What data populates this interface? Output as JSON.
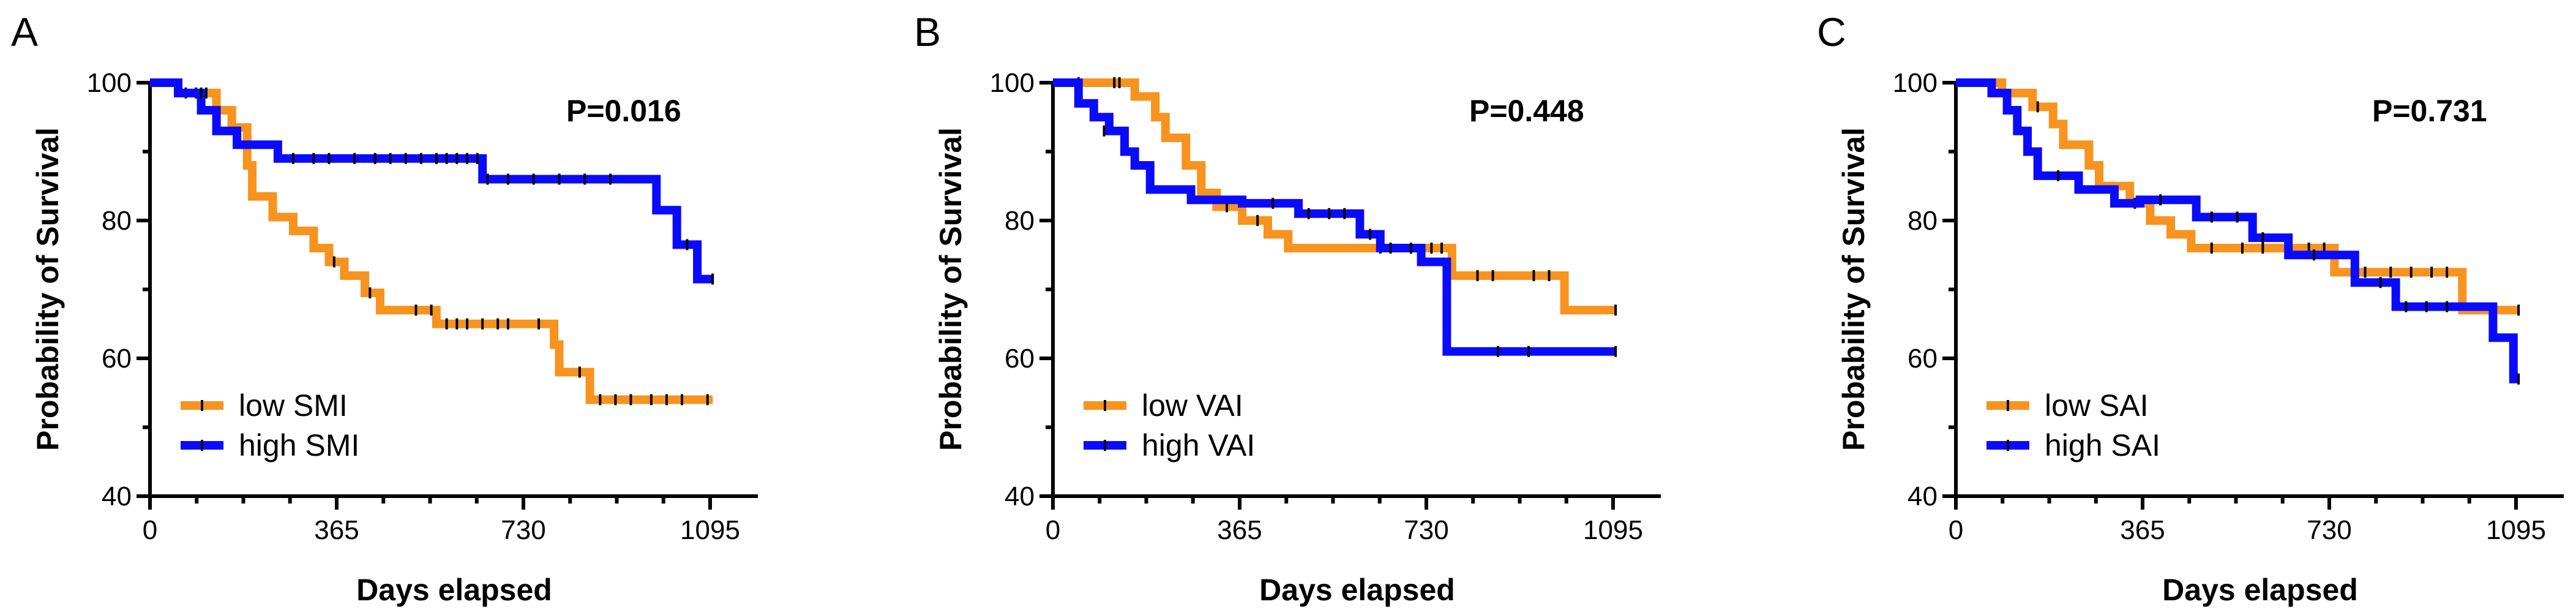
{
  "chart_data": [
    {
      "type": "line",
      "panel_label": "A",
      "xlabel": "Days elapsed",
      "ylabel": "Probability of Survival",
      "xlim": [
        0,
        1150
      ],
      "ylim": [
        40,
        100
      ],
      "xticks": [
        0,
        365,
        730,
        1095
      ],
      "yticks": [
        40,
        60,
        80,
        100
      ],
      "p_value": "P=0.016",
      "legend_position": "bottom-left",
      "series": [
        {
          "name": "low SMI",
          "color": "#f7931e",
          "steps": [
            [
              0,
              100
            ],
            [
              55,
              100
            ],
            [
              55,
              98.5
            ],
            [
              130,
              98.5
            ],
            [
              130,
              96
            ],
            [
              160,
              96
            ],
            [
              160,
              93.5
            ],
            [
              190,
              93.5
            ],
            [
              190,
              88
            ],
            [
              200,
              88
            ],
            [
              200,
              83.5
            ],
            [
              240,
              83.5
            ],
            [
              240,
              80.5
            ],
            [
              280,
              80.5
            ],
            [
              280,
              78.5
            ],
            [
              320,
              78.5
            ],
            [
              320,
              76
            ],
            [
              350,
              76
            ],
            [
              350,
              74
            ],
            [
              380,
              74
            ],
            [
              380,
              72
            ],
            [
              420,
              72
            ],
            [
              420,
              69.5
            ],
            [
              450,
              69.5
            ],
            [
              450,
              67
            ],
            [
              560,
              67
            ],
            [
              560,
              65
            ],
            [
              790,
              65
            ],
            [
              790,
              62
            ],
            [
              800,
              62
            ],
            [
              800,
              58
            ],
            [
              860,
              58
            ],
            [
              860,
              54
            ],
            [
              1100,
              54
            ]
          ],
          "censored": [
            [
              70,
              98.5
            ],
            [
              90,
              98.5
            ],
            [
              110,
              98.5
            ],
            [
              360,
              74
            ],
            [
              430,
              69.5
            ],
            [
              520,
              67
            ],
            [
              550,
              67
            ],
            [
              580,
              65
            ],
            [
              600,
              65
            ],
            [
              620,
              65
            ],
            [
              650,
              65
            ],
            [
              680,
              65
            ],
            [
              700,
              65
            ],
            [
              760,
              65
            ],
            [
              840,
              58
            ],
            [
              880,
              54
            ],
            [
              910,
              54
            ],
            [
              940,
              54
            ],
            [
              980,
              54
            ],
            [
              1010,
              54
            ],
            [
              1040,
              54
            ],
            [
              1090,
              54
            ]
          ]
        },
        {
          "name": "high SMI",
          "color": "#0a0aff",
          "steps": [
            [
              0,
              100
            ],
            [
              55,
              100
            ],
            [
              55,
              98.5
            ],
            [
              100,
              98.5
            ],
            [
              100,
              96
            ],
            [
              130,
              96
            ],
            [
              130,
              93
            ],
            [
              170,
              93
            ],
            [
              170,
              91
            ],
            [
              250,
              91
            ],
            [
              250,
              89
            ],
            [
              650,
              89
            ],
            [
              650,
              86
            ],
            [
              990,
              86
            ],
            [
              990,
              81.5
            ],
            [
              1030,
              81.5
            ],
            [
              1030,
              76.5
            ],
            [
              1070,
              76.5
            ],
            [
              1070,
              71.5
            ],
            [
              1100,
              71.5
            ]
          ],
          "censored": [
            [
              100,
              98.5
            ],
            [
              280,
              89
            ],
            [
              320,
              89
            ],
            [
              350,
              89
            ],
            [
              400,
              89
            ],
            [
              440,
              89
            ],
            [
              470,
              89
            ],
            [
              500,
              89
            ],
            [
              530,
              89
            ],
            [
              560,
              89
            ],
            [
              580,
              89
            ],
            [
              600,
              89
            ],
            [
              620,
              89
            ],
            [
              640,
              89
            ],
            [
              660,
              86
            ],
            [
              700,
              86
            ],
            [
              750,
              86
            ],
            [
              800,
              86
            ],
            [
              850,
              86
            ],
            [
              900,
              86
            ],
            [
              1050,
              76.5
            ],
            [
              1100,
              71.5
            ]
          ]
        }
      ]
    },
    {
      "type": "line",
      "panel_label": "B",
      "xlabel": "Days elapsed",
      "ylabel": "Probability of Survival",
      "xlim": [
        0,
        1150
      ],
      "ylim": [
        40,
        100
      ],
      "xticks": [
        0,
        365,
        730,
        1095
      ],
      "yticks": [
        40,
        60,
        80,
        100
      ],
      "p_value": "P=0.448",
      "legend_position": "bottom-left",
      "series": [
        {
          "name": "low VAI",
          "color": "#f7931e",
          "steps": [
            [
              0,
              100
            ],
            [
              160,
              100
            ],
            [
              160,
              98
            ],
            [
              200,
              98
            ],
            [
              200,
              95
            ],
            [
              220,
              95
            ],
            [
              220,
              92
            ],
            [
              260,
              92
            ],
            [
              260,
              88
            ],
            [
              290,
              88
            ],
            [
              290,
              84
            ],
            [
              320,
              84
            ],
            [
              320,
              82
            ],
            [
              370,
              82
            ],
            [
              370,
              80
            ],
            [
              420,
              80
            ],
            [
              420,
              78
            ],
            [
              460,
              78
            ],
            [
              460,
              76
            ],
            [
              780,
              76
            ],
            [
              780,
              72
            ],
            [
              1000,
              72
            ],
            [
              1000,
              67
            ],
            [
              1100,
              67
            ]
          ],
          "censored": [
            [
              50,
              100
            ],
            [
              120,
              100
            ],
            [
              130,
              100
            ],
            [
              340,
              82
            ],
            [
              400,
              80
            ],
            [
              640,
              76
            ],
            [
              700,
              76
            ],
            [
              740,
              76
            ],
            [
              760,
              76
            ],
            [
              830,
              72
            ],
            [
              860,
              72
            ],
            [
              940,
              72
            ],
            [
              970,
              72
            ],
            [
              1100,
              67
            ]
          ]
        },
        {
          "name": "high VAI",
          "color": "#0a0aff",
          "steps": [
            [
              0,
              100
            ],
            [
              50,
              100
            ],
            [
              50,
              97
            ],
            [
              80,
              97
            ],
            [
              80,
              95
            ],
            [
              110,
              95
            ],
            [
              110,
              93
            ],
            [
              140,
              93
            ],
            [
              140,
              90
            ],
            [
              160,
              90
            ],
            [
              160,
              88
            ],
            [
              190,
              88
            ],
            [
              190,
              84.5
            ],
            [
              270,
              84.5
            ],
            [
              270,
              83
            ],
            [
              370,
              83
            ],
            [
              370,
              82.5
            ],
            [
              480,
              82.5
            ],
            [
              480,
              81
            ],
            [
              600,
              81
            ],
            [
              600,
              78
            ],
            [
              640,
              78
            ],
            [
              640,
              76
            ],
            [
              720,
              76
            ],
            [
              720,
              74
            ],
            [
              770,
              74
            ],
            [
              770,
              61
            ],
            [
              1100,
              61
            ]
          ],
          "censored": [
            [
              100,
              93
            ],
            [
              430,
              82.5
            ],
            [
              500,
              81
            ],
            [
              540,
              81
            ],
            [
              570,
              81
            ],
            [
              620,
              78
            ],
            [
              660,
              76
            ],
            [
              700,
              76
            ],
            [
              870,
              61
            ],
            [
              930,
              61
            ],
            [
              1100,
              61
            ]
          ]
        }
      ]
    },
    {
      "type": "line",
      "panel_label": "C",
      "xlabel": "Days elapsed",
      "ylabel": "Probability of Survival",
      "xlim": [
        0,
        1150
      ],
      "ylim": [
        40,
        100
      ],
      "xticks": [
        0,
        365,
        730,
        1095
      ],
      "yticks": [
        40,
        60,
        80,
        100
      ],
      "p_value": "P=0.731",
      "legend_position": "bottom-left",
      "series": [
        {
          "name": "low SAI",
          "color": "#f7931e",
          "steps": [
            [
              0,
              100
            ],
            [
              90,
              100
            ],
            [
              90,
              98.5
            ],
            [
              150,
              98.5
            ],
            [
              150,
              96.5
            ],
            [
              190,
              96.5
            ],
            [
              190,
              94
            ],
            [
              210,
              94
            ],
            [
              210,
              91
            ],
            [
              260,
              91
            ],
            [
              260,
              88
            ],
            [
              280,
              88
            ],
            [
              280,
              85
            ],
            [
              340,
              85
            ],
            [
              340,
              82.5
            ],
            [
              380,
              82.5
            ],
            [
              380,
              80
            ],
            [
              420,
              80
            ],
            [
              420,
              78
            ],
            [
              460,
              78
            ],
            [
              460,
              76
            ],
            [
              740,
              76
            ],
            [
              740,
              72.5
            ],
            [
              990,
              72.5
            ],
            [
              990,
              67
            ],
            [
              1100,
              67
            ]
          ],
          "censored": [
            [
              160,
              96.5
            ],
            [
              350,
              82.5
            ],
            [
              500,
              76
            ],
            [
              560,
              76
            ],
            [
              600,
              76
            ],
            [
              650,
              76
            ],
            [
              690,
              76
            ],
            [
              720,
              76
            ],
            [
              800,
              72.5
            ],
            [
              850,
              72.5
            ],
            [
              890,
              72.5
            ],
            [
              930,
              72.5
            ],
            [
              960,
              72.5
            ],
            [
              1050,
              67
            ],
            [
              1100,
              67
            ]
          ]
        },
        {
          "name": "high SAI",
          "color": "#0a0aff",
          "steps": [
            [
              0,
              100
            ],
            [
              70,
              100
            ],
            [
              70,
              98.5
            ],
            [
              100,
              98.5
            ],
            [
              100,
              96
            ],
            [
              120,
              96
            ],
            [
              120,
              93
            ],
            [
              140,
              93
            ],
            [
              140,
              90
            ],
            [
              160,
              90
            ],
            [
              160,
              86.5
            ],
            [
              240,
              86.5
            ],
            [
              240,
              84.5
            ],
            [
              310,
              84.5
            ],
            [
              310,
              82.5
            ],
            [
              360,
              82.5
            ],
            [
              360,
              83
            ],
            [
              470,
              83
            ],
            [
              470,
              80.5
            ],
            [
              580,
              80.5
            ],
            [
              580,
              77.5
            ],
            [
              650,
              77.5
            ],
            [
              650,
              75
            ],
            [
              780,
              75
            ],
            [
              780,
              71
            ],
            [
              860,
              71
            ],
            [
              860,
              67.5
            ],
            [
              1050,
              67.5
            ],
            [
              1050,
              63
            ],
            [
              1090,
              63
            ],
            [
              1090,
              57
            ],
            [
              1100,
              57
            ]
          ],
          "censored": [
            [
              200,
              86.5
            ],
            [
              400,
              83
            ],
            [
              500,
              80.5
            ],
            [
              550,
              80.5
            ],
            [
              600,
              77.5
            ],
            [
              700,
              75
            ],
            [
              830,
              71
            ],
            [
              880,
              67.5
            ],
            [
              920,
              67.5
            ],
            [
              960,
              67.5
            ],
            [
              1100,
              57
            ]
          ]
        }
      ]
    }
  ]
}
